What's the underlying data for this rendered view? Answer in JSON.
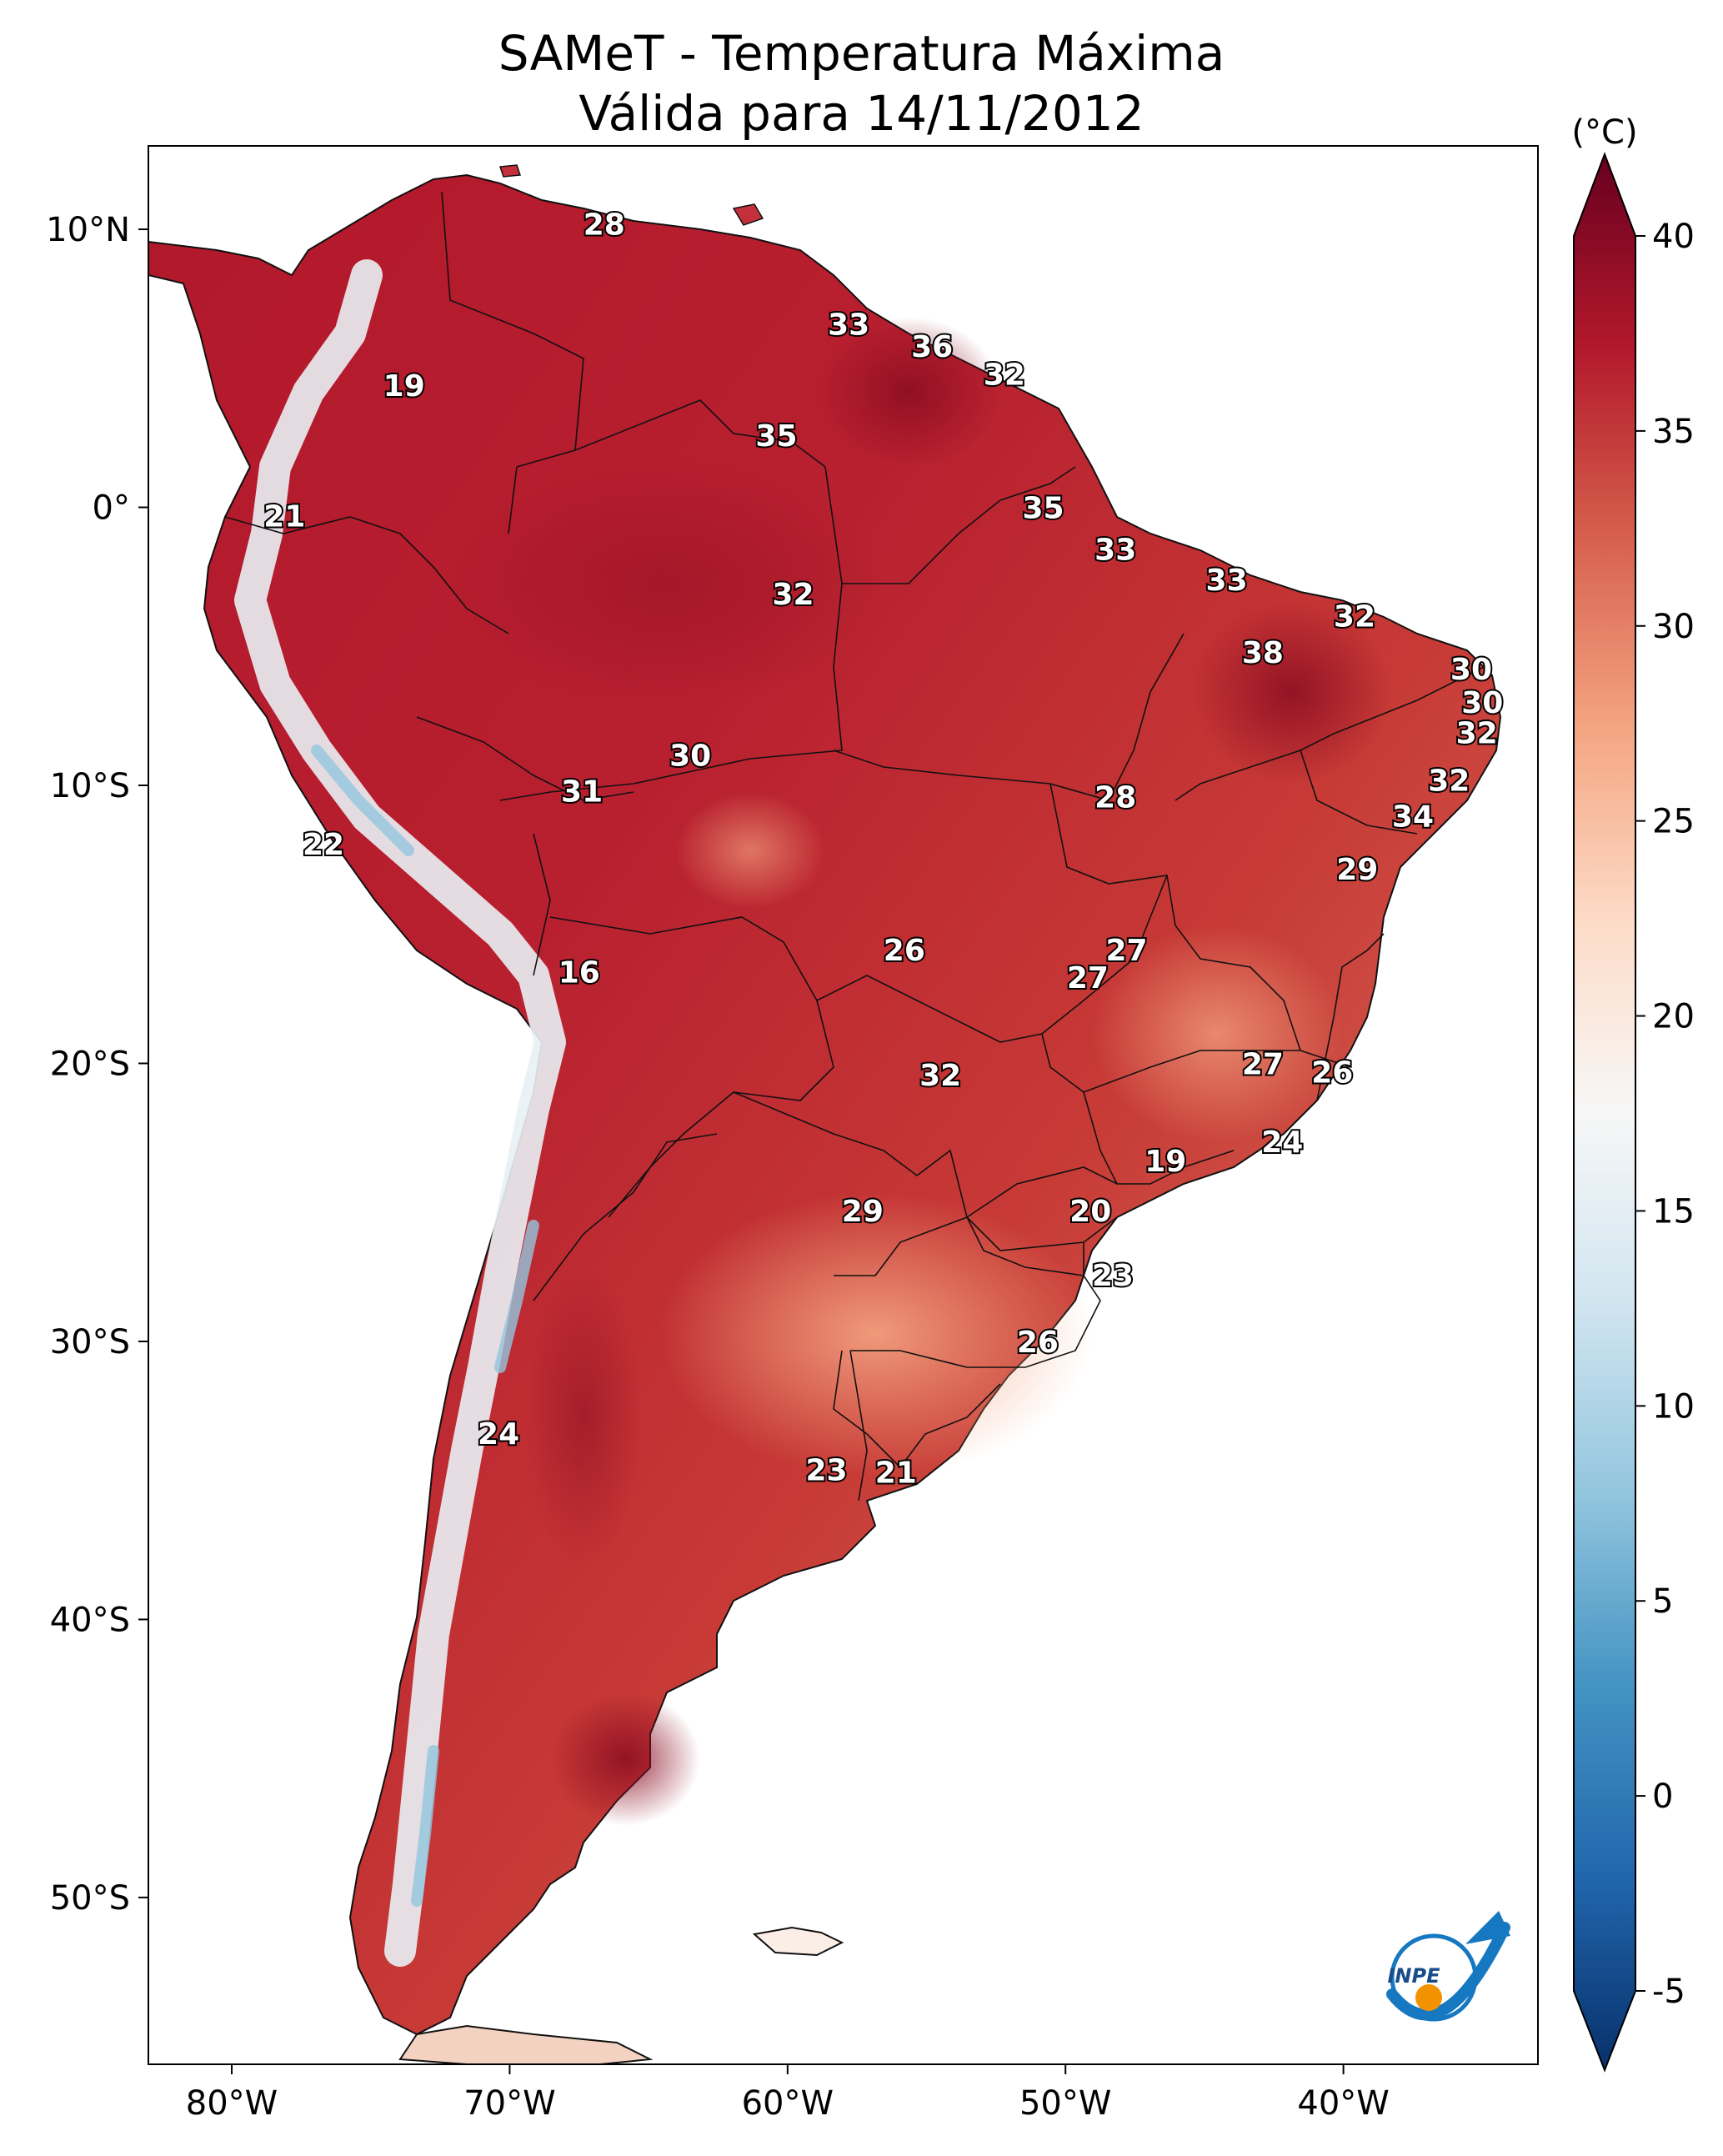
{
  "title": {
    "line1": "SAMeT - Temperatura Máxima",
    "line2": "Válida para 14/11/2012"
  },
  "map": {
    "lon_ticks": [
      "80°W",
      "70°W",
      "60°W",
      "50°W",
      "40°W"
    ],
    "lat_ticks": [
      "10°N",
      "0°",
      "10°S",
      "20°S",
      "30°S",
      "40°S",
      "50°S"
    ],
    "lon_range": [
      -83,
      -33
    ],
    "lat_range": [
      -56,
      13
    ]
  },
  "colorbar": {
    "unit": "(°C)",
    "ticks": [
      "40",
      "35",
      "30",
      "25",
      "20",
      "15",
      "10",
      "5",
      "0",
      "-5"
    ],
    "range": [
      -5,
      40
    ],
    "colors": [
      "#08306b",
      "#2166ac",
      "#4393c3",
      "#92c5de",
      "#d1e5f0",
      "#f7f7f7",
      "#fddbc7",
      "#f4a582",
      "#d6604d",
      "#b2182b",
      "#67001f"
    ]
  },
  "logo": {
    "text": "INPE"
  },
  "labels": [
    {
      "v": "28",
      "lon": -66.6,
      "lat": 10.2
    },
    {
      "v": "33",
      "lon": -57.8,
      "lat": 6.6
    },
    {
      "v": "36",
      "lon": -54.8,
      "lat": 5.8
    },
    {
      "v": "32",
      "lon": -52.2,
      "lat": 4.8
    },
    {
      "v": "19",
      "lon": -73.8,
      "lat": 4.4
    },
    {
      "v": "35",
      "lon": -60.4,
      "lat": 2.6
    },
    {
      "v": "21",
      "lon": -78.1,
      "lat": -0.3
    },
    {
      "v": "35",
      "lon": -50.8,
      "lat": 0.0
    },
    {
      "v": "33",
      "lon": -48.2,
      "lat": -1.5
    },
    {
      "v": "32",
      "lon": -59.8,
      "lat": -3.1
    },
    {
      "v": "33",
      "lon": -44.2,
      "lat": -2.6
    },
    {
      "v": "32",
      "lon": -39.6,
      "lat": -3.9
    },
    {
      "v": "38",
      "lon": -42.9,
      "lat": -5.2
    },
    {
      "v": "30",
      "lon": -35.4,
      "lat": -5.8
    },
    {
      "v": "30",
      "lon": -35.0,
      "lat": -7.0
    },
    {
      "v": "32",
      "lon": -35.2,
      "lat": -8.1
    },
    {
      "v": "30",
      "lon": -63.5,
      "lat": -8.9
    },
    {
      "v": "31",
      "lon": -67.4,
      "lat": -10.2
    },
    {
      "v": "32",
      "lon": -36.2,
      "lat": -9.8
    },
    {
      "v": "28",
      "lon": -48.2,
      "lat": -10.4
    },
    {
      "v": "34",
      "lon": -37.5,
      "lat": -11.1
    },
    {
      "v": "22",
      "lon": -76.7,
      "lat": -12.1
    },
    {
      "v": "29",
      "lon": -39.5,
      "lat": -13.0
    },
    {
      "v": "26",
      "lon": -55.8,
      "lat": -15.9
    },
    {
      "v": "27",
      "lon": -47.8,
      "lat": -15.9
    },
    {
      "v": "27",
      "lon": -49.2,
      "lat": -16.9
    },
    {
      "v": "16",
      "lon": -67.5,
      "lat": -16.7
    },
    {
      "v": "27",
      "lon": -42.9,
      "lat": -20.0
    },
    {
      "v": "26",
      "lon": -40.4,
      "lat": -20.3
    },
    {
      "v": "32",
      "lon": -54.5,
      "lat": -20.4
    },
    {
      "v": "24",
      "lon": -42.2,
      "lat": -22.8
    },
    {
      "v": "19",
      "lon": -46.4,
      "lat": -23.5
    },
    {
      "v": "20",
      "lon": -49.1,
      "lat": -25.3
    },
    {
      "v": "29",
      "lon": -57.3,
      "lat": -25.3
    },
    {
      "v": "23",
      "lon": -48.3,
      "lat": -27.6
    },
    {
      "v": "26",
      "lon": -51.0,
      "lat": -30.0
    },
    {
      "v": "24",
      "lon": -70.4,
      "lat": -33.3
    },
    {
      "v": "23",
      "lon": -58.6,
      "lat": -34.6
    },
    {
      "v": "21",
      "lon": -56.1,
      "lat": -34.7
    }
  ]
}
